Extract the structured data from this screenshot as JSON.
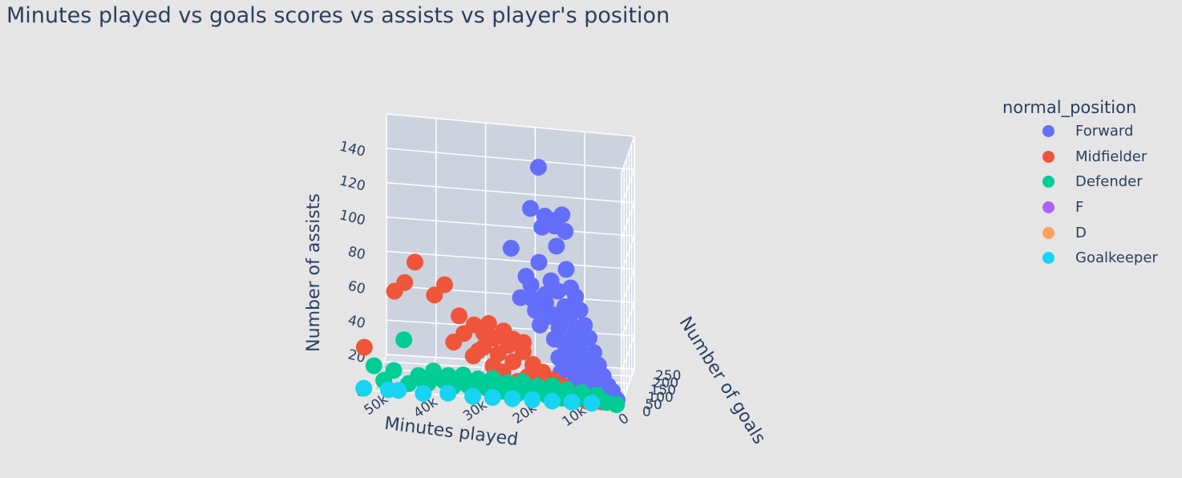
{
  "title": "Minutes played vs goals scores vs assists vs player's position",
  "legend": {
    "title": "normal_position",
    "items": [
      {
        "label": "Forward",
        "color": "#636efa"
      },
      {
        "label": "Midfielder",
        "color": "#ef553b"
      },
      {
        "label": "Defender",
        "color": "#00cc96"
      },
      {
        "label": "F",
        "color": "#ab63fa"
      },
      {
        "label": "D",
        "color": "#ffa15a"
      },
      {
        "label": "Goalkeeper",
        "color": "#19d3f3"
      }
    ]
  },
  "chart_data": {
    "type": "scatter",
    "subtype": "scatter3d",
    "title": "Minutes played vs goals scores vs assists vs player's position",
    "x_axis": {
      "label": "Minutes played",
      "ticks": [
        "0",
        "10k",
        "20k",
        "30k",
        "40k",
        "50k"
      ],
      "range": [
        0,
        50000
      ]
    },
    "y_axis": {
      "label": "Number of goals",
      "ticks": [
        "0",
        "50",
        "100",
        "150",
        "200",
        "250"
      ],
      "range": [
        0,
        250
      ]
    },
    "z_axis": {
      "label": "Number of assists",
      "ticks": [
        "0",
        "20",
        "40",
        "60",
        "80",
        "100",
        "120",
        "140"
      ],
      "range": [
        0,
        140
      ]
    },
    "legend_placement": "right",
    "series": [
      {
        "name": "Forward",
        "color": "#636efa",
        "points": [
          [
            18000,
            120,
            128
          ],
          [
            19500,
            110,
            104
          ],
          [
            16500,
            100,
            101
          ],
          [
            13000,
            95,
            103
          ],
          [
            15500,
            90,
            100
          ],
          [
            14500,
            95,
            96
          ],
          [
            17000,
            92,
            95
          ],
          [
            12500,
            110,
            92
          ],
          [
            23000,
            70,
            83
          ],
          [
            14000,
            85,
            85
          ],
          [
            17500,
            80,
            75
          ],
          [
            12000,
            80,
            72
          ],
          [
            20000,
            70,
            67
          ],
          [
            15000,
            75,
            65
          ],
          [
            11000,
            70,
            62
          ],
          [
            13500,
            65,
            60
          ],
          [
            16000,
            60,
            58
          ],
          [
            10000,
            70,
            57
          ],
          [
            18500,
            55,
            55
          ],
          [
            12000,
            55,
            52
          ],
          [
            9000,
            60,
            50
          ],
          [
            14000,
            50,
            47
          ],
          [
            11000,
            45,
            45
          ],
          [
            8000,
            50,
            42
          ],
          [
            13000,
            40,
            40
          ],
          [
            10000,
            40,
            37
          ],
          [
            7000,
            45,
            35
          ],
          [
            12000,
            35,
            32
          ],
          [
            9000,
            35,
            30
          ],
          [
            6000,
            40,
            27
          ],
          [
            11000,
            30,
            25
          ],
          [
            8000,
            30,
            23
          ],
          [
            5000,
            35,
            20
          ],
          [
            10000,
            25,
            18
          ],
          [
            7000,
            25,
            16
          ],
          [
            4000,
            30,
            14
          ],
          [
            9000,
            20,
            12
          ],
          [
            6000,
            20,
            10
          ],
          [
            3000,
            25,
            9
          ],
          [
            8000,
            15,
            8
          ],
          [
            5000,
            15,
            7
          ],
          [
            2000,
            20,
            6
          ],
          [
            7000,
            10,
            5
          ],
          [
            4000,
            10,
            4
          ],
          [
            1500,
            15,
            3
          ],
          [
            3000,
            8,
            2
          ],
          [
            1000,
            10,
            2
          ],
          [
            2500,
            12,
            4
          ],
          [
            15000,
            60,
            45
          ],
          [
            17000,
            55,
            40
          ],
          [
            14000,
            45,
            33
          ],
          [
            11500,
            50,
            29
          ],
          [
            13000,
            35,
            23
          ],
          [
            10500,
            38,
            20
          ],
          [
            12500,
            28,
            15
          ],
          [
            9500,
            25,
            13
          ],
          [
            19000,
            70,
            62
          ],
          [
            21000,
            60,
            55
          ],
          [
            16000,
            70,
            52
          ],
          [
            18000,
            60,
            48
          ]
        ]
      },
      {
        "name": "Midfielder",
        "color": "#ef553b",
        "points": [
          [
            42000,
            30,
            74
          ],
          [
            44000,
            25,
            62
          ],
          [
            46000,
            20,
            57
          ],
          [
            36000,
            30,
            62
          ],
          [
            38000,
            25,
            56
          ],
          [
            52000,
            10,
            24
          ],
          [
            30000,
            25,
            40
          ],
          [
            28000,
            20,
            36
          ],
          [
            32000,
            20,
            35
          ],
          [
            26000,
            25,
            33
          ],
          [
            24000,
            20,
            38
          ],
          [
            22000,
            15,
            34
          ],
          [
            34000,
            15,
            30
          ],
          [
            28000,
            15,
            28
          ],
          [
            25000,
            12,
            25
          ],
          [
            20000,
            15,
            27
          ],
          [
            30000,
            10,
            23
          ],
          [
            22000,
            10,
            21
          ],
          [
            26000,
            8,
            18
          ],
          [
            18000,
            12,
            20
          ],
          [
            24000,
            6,
            15
          ],
          [
            19000,
            8,
            13
          ],
          [
            16000,
            10,
            16
          ],
          [
            14000,
            8,
            12
          ],
          [
            21000,
            5,
            10
          ],
          [
            17000,
            5,
            8
          ],
          [
            12000,
            6,
            9
          ],
          [
            15000,
            4,
            6
          ],
          [
            10000,
            5,
            5
          ],
          [
            13000,
            3,
            4
          ],
          [
            8000,
            4,
            4
          ],
          [
            11000,
            2,
            3
          ],
          [
            6000,
            3,
            2
          ],
          [
            9000,
            1,
            2
          ],
          [
            4000,
            2,
            1
          ],
          [
            7000,
            1,
            1
          ],
          [
            27000,
            18,
            42
          ],
          [
            23000,
            18,
            30
          ],
          [
            29000,
            12,
            26
          ],
          [
            33000,
            22,
            45
          ],
          [
            20000,
            20,
            32
          ],
          [
            25000,
            5,
            12
          ],
          [
            18000,
            3,
            9
          ],
          [
            14000,
            2,
            5
          ]
        ]
      },
      {
        "name": "Defender",
        "color": "#00cc96",
        "points": [
          [
            44000,
            8,
            30
          ],
          [
            50000,
            5,
            14
          ],
          [
            46000,
            5,
            12
          ],
          [
            41000,
            4,
            10
          ],
          [
            38000,
            6,
            13
          ],
          [
            35000,
            5,
            11
          ],
          [
            32000,
            4,
            12
          ],
          [
            29000,
            5,
            10
          ],
          [
            26000,
            3,
            11
          ],
          [
            23000,
            4,
            9
          ],
          [
            20000,
            3,
            10
          ],
          [
            17000,
            3,
            8
          ],
          [
            14000,
            2,
            9
          ],
          [
            11000,
            2,
            7
          ],
          [
            8000,
            1,
            6
          ],
          [
            5000,
            1,
            5
          ],
          [
            48000,
            3,
            6
          ],
          [
            43000,
            3,
            5
          ],
          [
            39000,
            2,
            6
          ],
          [
            34000,
            2,
            5
          ],
          [
            30000,
            2,
            4
          ],
          [
            27000,
            1,
            5
          ],
          [
            24000,
            1,
            4
          ],
          [
            21000,
            1,
            3
          ],
          [
            18000,
            1,
            4
          ],
          [
            15000,
            1,
            3
          ],
          [
            12000,
            1,
            2
          ],
          [
            9000,
            0,
            2
          ],
          [
            6000,
            0,
            1
          ],
          [
            3000,
            0,
            1
          ],
          [
            1000,
            0,
            0
          ],
          [
            36000,
            3,
            8
          ],
          [
            25000,
            2,
            7
          ],
          [
            16000,
            2,
            5
          ],
          [
            40000,
            4,
            7
          ],
          [
            31000,
            3,
            6
          ]
        ]
      },
      {
        "name": "F",
        "color": "#ab63fa",
        "points": []
      },
      {
        "name": "D",
        "color": "#ffa15a",
        "points": []
      },
      {
        "name": "Goalkeeper",
        "color": "#19d3f3",
        "points": [
          [
            52000,
            0,
            1
          ],
          [
            47000,
            0,
            1
          ],
          [
            45000,
            0,
            1
          ],
          [
            40000,
            0,
            0
          ],
          [
            35000,
            0,
            1
          ],
          [
            30000,
            0,
            0
          ],
          [
            26000,
            0,
            0
          ],
          [
            22000,
            0,
            0
          ],
          [
            18000,
            0,
            0
          ],
          [
            14000,
            0,
            0
          ],
          [
            10000,
            0,
            0
          ],
          [
            6000,
            0,
            0
          ]
        ]
      }
    ]
  }
}
